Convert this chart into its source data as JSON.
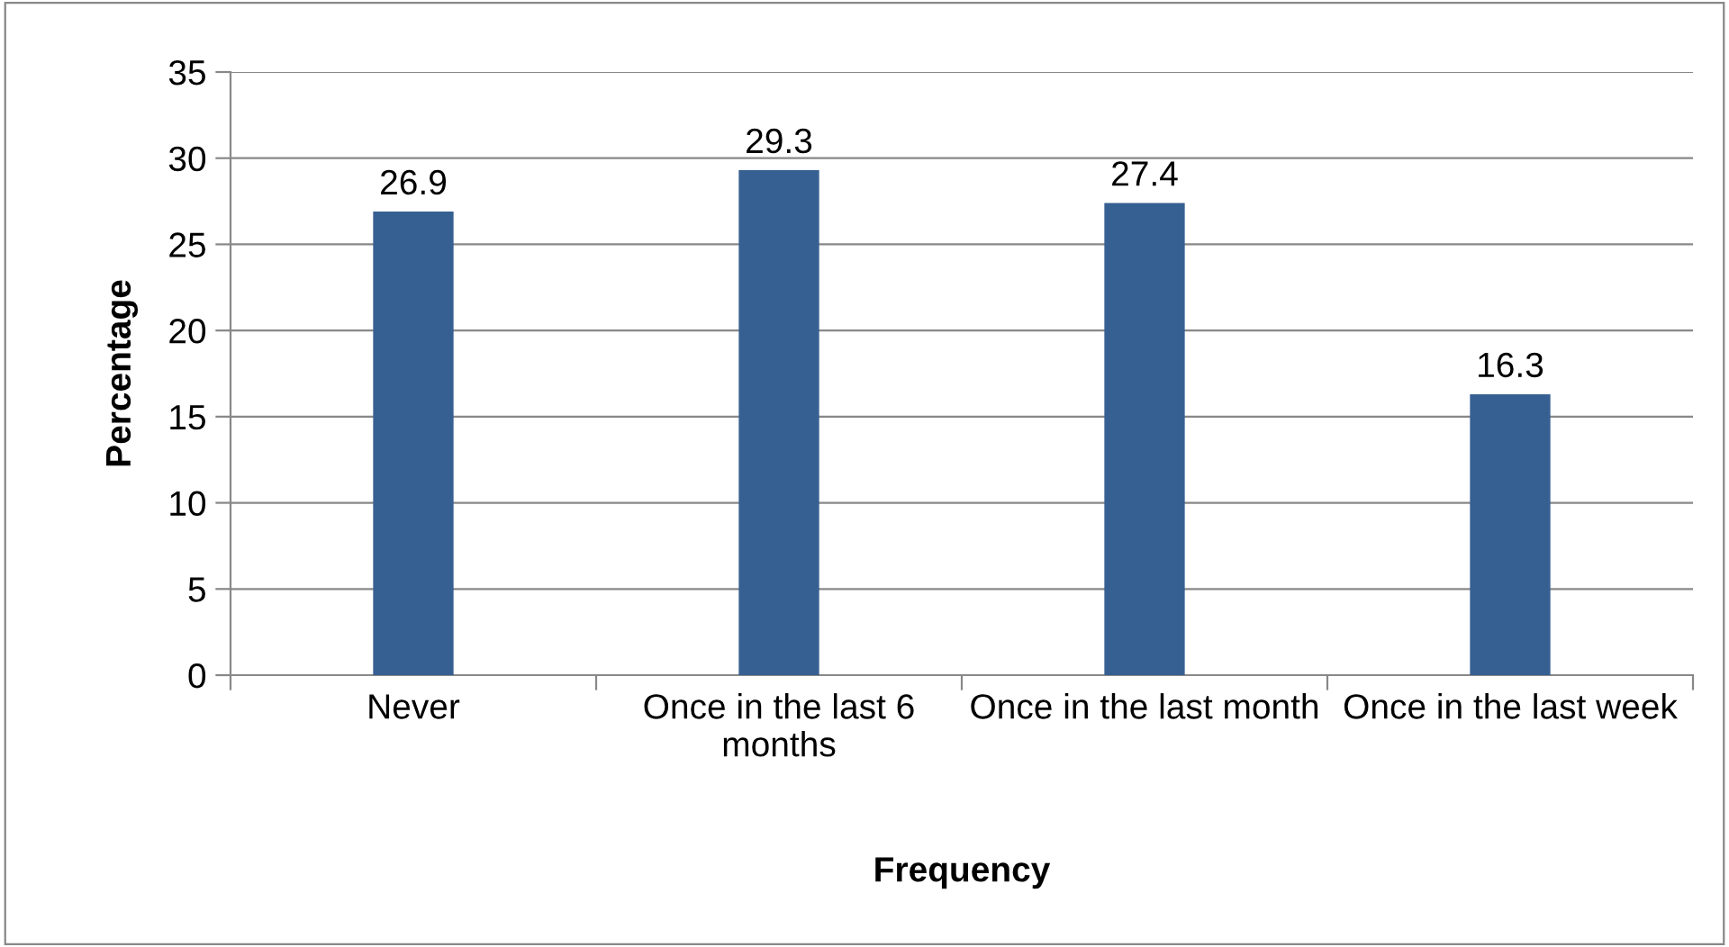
{
  "chart_data": {
    "type": "bar",
    "xlabel": "Frequency",
    "ylabel": "Percentage",
    "categories": [
      "Never",
      "Once in the last 6 months",
      "Once in the last month",
      "Once in the last week"
    ],
    "values": [
      26.9,
      29.3,
      27.4,
      16.3
    ],
    "color": "#376092",
    "ylim": [
      0,
      35
    ],
    "yticks": [
      0,
      5,
      10,
      15,
      20,
      25,
      30,
      35
    ],
    "grid": "y",
    "data_labels": true,
    "legend": false
  }
}
